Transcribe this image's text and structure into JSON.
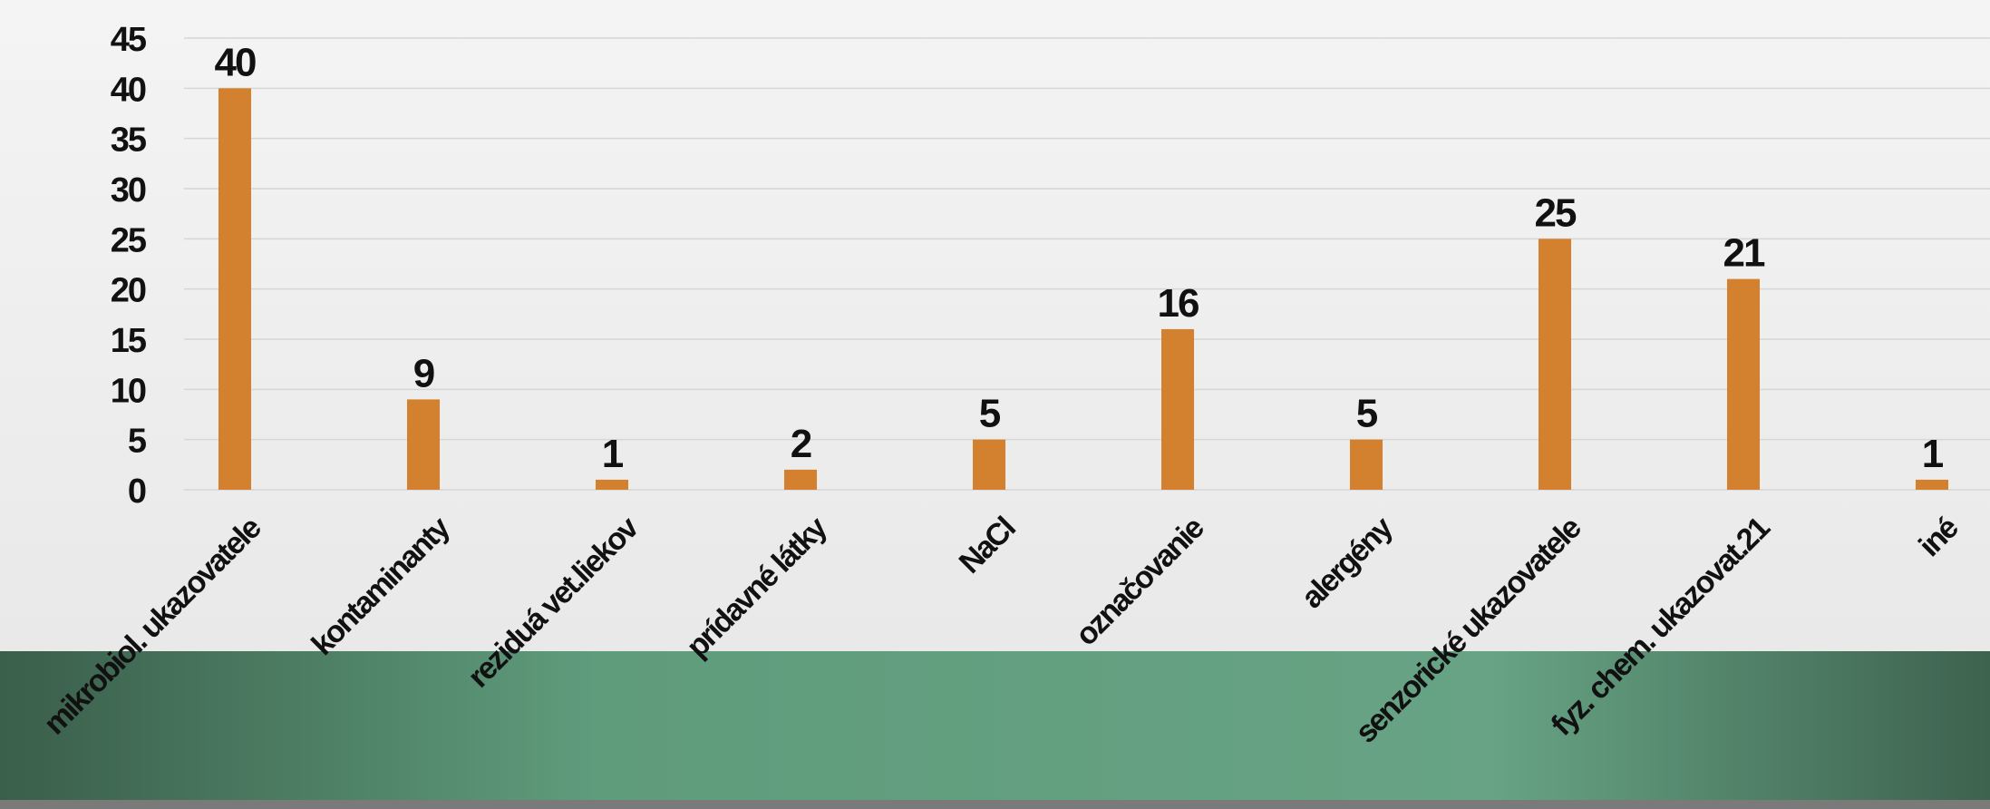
{
  "chart_data": {
    "type": "bar",
    "categories": [
      "mikrobiol. ukazovatele",
      "kontaminanty",
      "reziduá vet.liekov",
      "prídavné látky",
      "NaCl",
      "označovanie",
      "alergény",
      "senzorické ukazovatele",
      "fyz. chem. ukazovat.21",
      "iné"
    ],
    "values": [
      40,
      9,
      1,
      2,
      5,
      16,
      5,
      25,
      21,
      1
    ],
    "color": "#d4812f",
    "ylim": [
      0,
      45
    ],
    "yticks": [
      0,
      5,
      10,
      15,
      20,
      25,
      30,
      35,
      40,
      45
    ],
    "grid": true
  }
}
